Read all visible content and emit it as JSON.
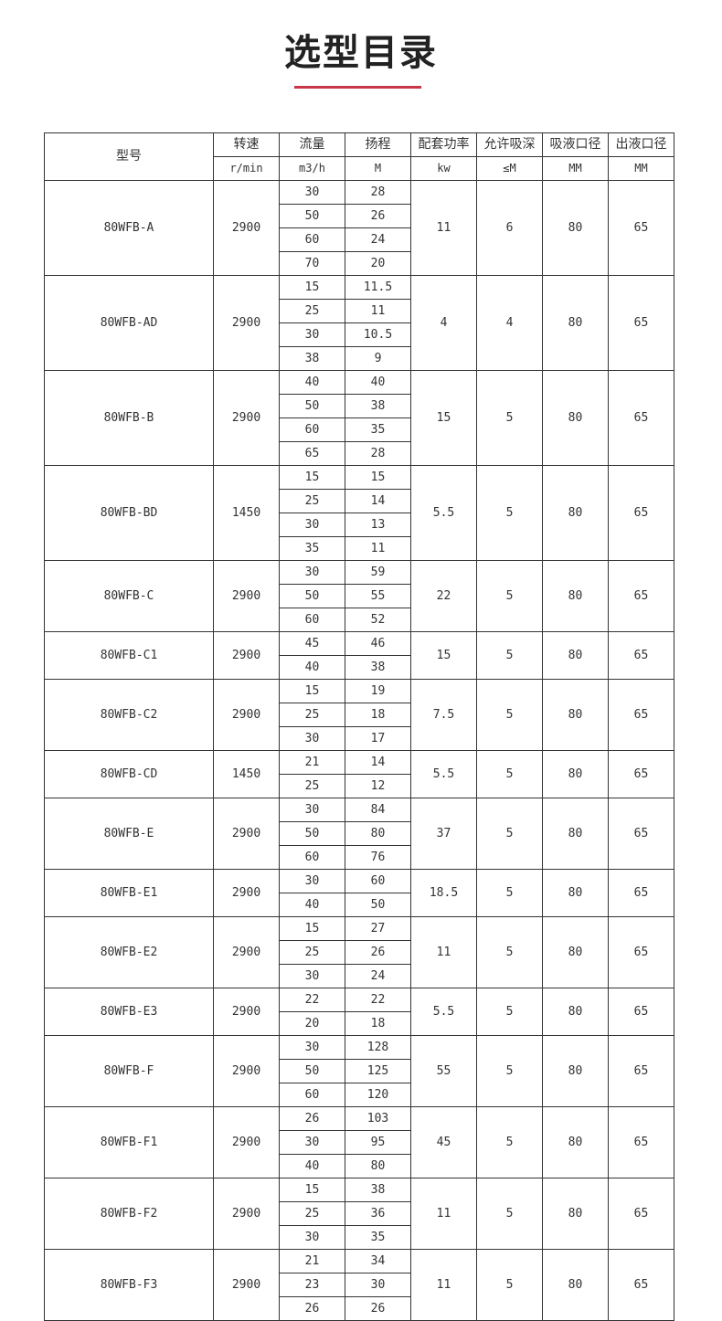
{
  "title": "选型目录",
  "colors": {
    "accent": "#c8364a",
    "border": "#333333"
  },
  "header": {
    "model": "型号",
    "columns": [
      {
        "label": "转速",
        "unit": "r/min"
      },
      {
        "label": "流量",
        "unit": "m3/h"
      },
      {
        "label": "扬程",
        "unit": "M"
      },
      {
        "label": "配套功率",
        "unit": "kw"
      },
      {
        "label": "允许吸深",
        "unit": "≤M"
      },
      {
        "label": "吸液口径",
        "unit": "MM"
      },
      {
        "label": "出液口径",
        "unit": "MM"
      }
    ]
  },
  "rows": [
    {
      "model": "80WFB-A",
      "speed": "2900",
      "points": [
        [
          "30",
          "28"
        ],
        [
          "50",
          "26"
        ],
        [
          "60",
          "24"
        ],
        [
          "70",
          "20"
        ]
      ],
      "power": "11",
      "suction": "6",
      "inlet": "80",
      "outlet": "65"
    },
    {
      "model": "80WFB-AD",
      "speed": "2900",
      "points": [
        [
          "15",
          "11.5"
        ],
        [
          "25",
          "11"
        ],
        [
          "30",
          "10.5"
        ],
        [
          "38",
          "9"
        ]
      ],
      "power": "4",
      "suction": "4",
      "inlet": "80",
      "outlet": "65"
    },
    {
      "model": "80WFB-B",
      "speed": "2900",
      "points": [
        [
          "40",
          "40"
        ],
        [
          "50",
          "38"
        ],
        [
          "60",
          "35"
        ],
        [
          "65",
          "28"
        ]
      ],
      "power": "15",
      "suction": "5",
      "inlet": "80",
      "outlet": "65"
    },
    {
      "model": "80WFB-BD",
      "speed": "1450",
      "points": [
        [
          "15",
          "15"
        ],
        [
          "25",
          "14"
        ],
        [
          "30",
          "13"
        ],
        [
          "35",
          "11"
        ]
      ],
      "power": "5.5",
      "suction": "5",
      "inlet": "80",
      "outlet": "65"
    },
    {
      "model": "80WFB-C",
      "speed": "2900",
      "points": [
        [
          "30",
          "59"
        ],
        [
          "50",
          "55"
        ],
        [
          "60",
          "52"
        ]
      ],
      "power": "22",
      "suction": "5",
      "inlet": "80",
      "outlet": "65"
    },
    {
      "model": "80WFB-C1",
      "speed": "2900",
      "points": [
        [
          "45",
          "46"
        ],
        [
          "40",
          "38"
        ]
      ],
      "power": "15",
      "suction": "5",
      "inlet": "80",
      "outlet": "65"
    },
    {
      "model": "80WFB-C2",
      "speed": "2900",
      "points": [
        [
          "15",
          "19"
        ],
        [
          "25",
          "18"
        ],
        [
          "30",
          "17"
        ]
      ],
      "power": "7.5",
      "suction": "5",
      "inlet": "80",
      "outlet": "65"
    },
    {
      "model": "80WFB-CD",
      "speed": "1450",
      "points": [
        [
          "21",
          "14"
        ],
        [
          "25",
          "12"
        ]
      ],
      "power": "5.5",
      "suction": "5",
      "inlet": "80",
      "outlet": "65"
    },
    {
      "model": "80WFB-E",
      "speed": "2900",
      "points": [
        [
          "30",
          "84"
        ],
        [
          "50",
          "80"
        ],
        [
          "60",
          "76"
        ]
      ],
      "power": "37",
      "suction": "5",
      "inlet": "80",
      "outlet": "65"
    },
    {
      "model": "80WFB-E1",
      "speed": "2900",
      "points": [
        [
          "30",
          "60"
        ],
        [
          "40",
          "50"
        ]
      ],
      "power": "18.5",
      "suction": "5",
      "inlet": "80",
      "outlet": "65"
    },
    {
      "model": "80WFB-E2",
      "speed": "2900",
      "points": [
        [
          "15",
          "27"
        ],
        [
          "25",
          "26"
        ],
        [
          "30",
          "24"
        ]
      ],
      "power": "11",
      "suction": "5",
      "inlet": "80",
      "outlet": "65"
    },
    {
      "model": "80WFB-E3",
      "speed": "2900",
      "points": [
        [
          "22",
          "22"
        ],
        [
          "20",
          "18"
        ]
      ],
      "power": "5.5",
      "suction": "5",
      "inlet": "80",
      "outlet": "65"
    },
    {
      "model": "80WFB-F",
      "speed": "2900",
      "points": [
        [
          "30",
          "128"
        ],
        [
          "50",
          "125"
        ],
        [
          "60",
          "120"
        ]
      ],
      "power": "55",
      "suction": "5",
      "inlet": "80",
      "outlet": "65"
    },
    {
      "model": "80WFB-F1",
      "speed": "2900",
      "points": [
        [
          "26",
          "103"
        ],
        [
          "30",
          "95"
        ],
        [
          "40",
          "80"
        ]
      ],
      "power": "45",
      "suction": "5",
      "inlet": "80",
      "outlet": "65"
    },
    {
      "model": "80WFB-F2",
      "speed": "2900",
      "points": [
        [
          "15",
          "38"
        ],
        [
          "25",
          "36"
        ],
        [
          "30",
          "35"
        ]
      ],
      "power": "11",
      "suction": "5",
      "inlet": "80",
      "outlet": "65"
    },
    {
      "model": "80WFB-F3",
      "speed": "2900",
      "points": [
        [
          "21",
          "34"
        ],
        [
          "23",
          "30"
        ],
        [
          "26",
          "26"
        ]
      ],
      "power": "11",
      "suction": "5",
      "inlet": "80",
      "outlet": "65"
    }
  ]
}
